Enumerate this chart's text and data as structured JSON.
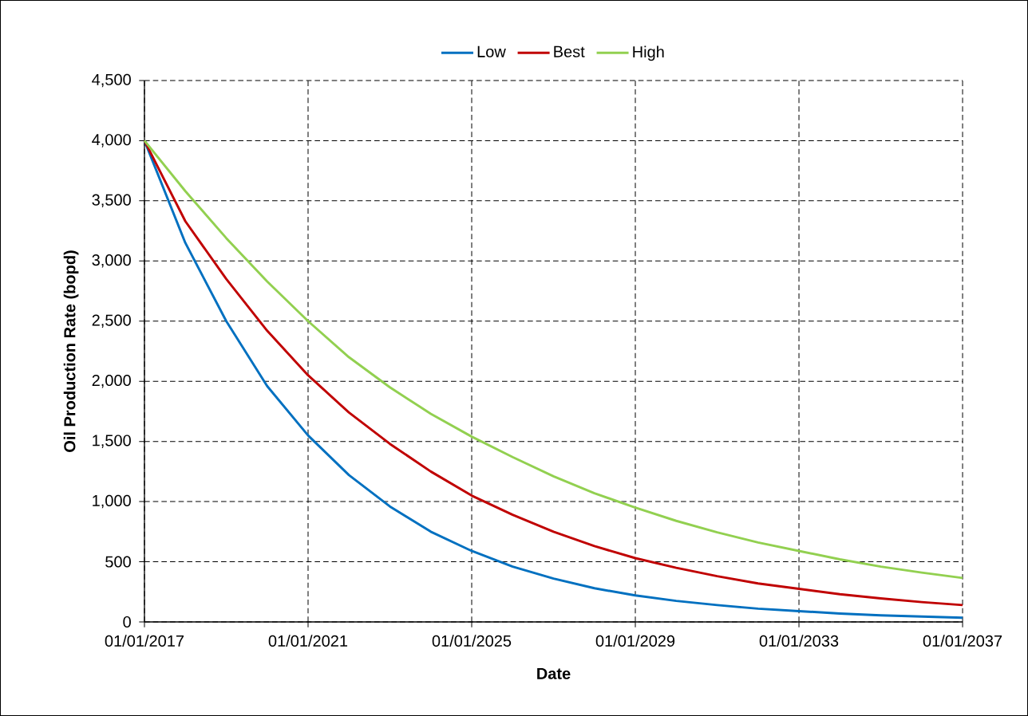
{
  "chart_data": {
    "type": "line",
    "xlabel": "Date",
    "ylabel": "Oil Production Rate (bopd)",
    "x": [
      "2017-01-01",
      "2018-01-01",
      "2019-01-01",
      "2020-01-01",
      "2021-01-01",
      "2022-01-01",
      "2023-01-01",
      "2024-01-01",
      "2025-01-01",
      "2026-01-01",
      "2027-01-01",
      "2028-01-01",
      "2029-01-01",
      "2030-01-01",
      "2031-01-01",
      "2032-01-01",
      "2033-01-01",
      "2034-01-01",
      "2035-01-01",
      "2036-01-01",
      "2037-01-01"
    ],
    "series": [
      {
        "name": "Low",
        "color": "#0070c0",
        "values": [
          4000,
          3150,
          2500,
          1960,
          1550,
          1220,
          960,
          750,
          590,
          460,
          360,
          280,
          220,
          175,
          140,
          110,
          90,
          70,
          55,
          45,
          35
        ]
      },
      {
        "name": "Best",
        "color": "#c00000",
        "values": [
          4000,
          3330,
          2850,
          2420,
          2050,
          1740,
          1480,
          1250,
          1050,
          890,
          750,
          630,
          530,
          450,
          380,
          320,
          275,
          230,
          195,
          165,
          140
        ]
      },
      {
        "name": "High",
        "color": "#92d050",
        "values": [
          4000,
          3580,
          3190,
          2830,
          2500,
          2200,
          1950,
          1730,
          1540,
          1370,
          1210,
          1070,
          950,
          840,
          745,
          660,
          590,
          520,
          460,
          410,
          365
        ]
      }
    ],
    "xlim": [
      "2017-01-01",
      "2037-01-01"
    ],
    "xticks": [
      {
        "value": "2017-01-01",
        "label": "01/01/2017"
      },
      {
        "value": "2021-01-01",
        "label": "01/01/2021"
      },
      {
        "value": "2025-01-01",
        "label": "01/01/2025"
      },
      {
        "value": "2029-01-01",
        "label": "01/01/2029"
      },
      {
        "value": "2033-01-01",
        "label": "01/01/2033"
      },
      {
        "value": "2037-01-01",
        "label": "01/01/2037"
      }
    ],
    "ylim": [
      0,
      4500
    ],
    "yticks": [
      0,
      {
        "value": 500,
        "label": "500"
      },
      {
        "value": 1000,
        "label": "1,000"
      },
      {
        "value": 1500,
        "label": "1,500"
      },
      {
        "value": 2000,
        "label": "2,000"
      },
      {
        "value": 2500,
        "label": "2,500"
      },
      {
        "value": 3000,
        "label": "3,000"
      },
      {
        "value": 3500,
        "label": "3,500"
      },
      {
        "value": 4000,
        "label": "4,000"
      },
      {
        "value": 4500,
        "label": "4,500"
      }
    ],
    "grid": true,
    "legend": "top",
    "marker": "none",
    "line_style": "solid"
  }
}
